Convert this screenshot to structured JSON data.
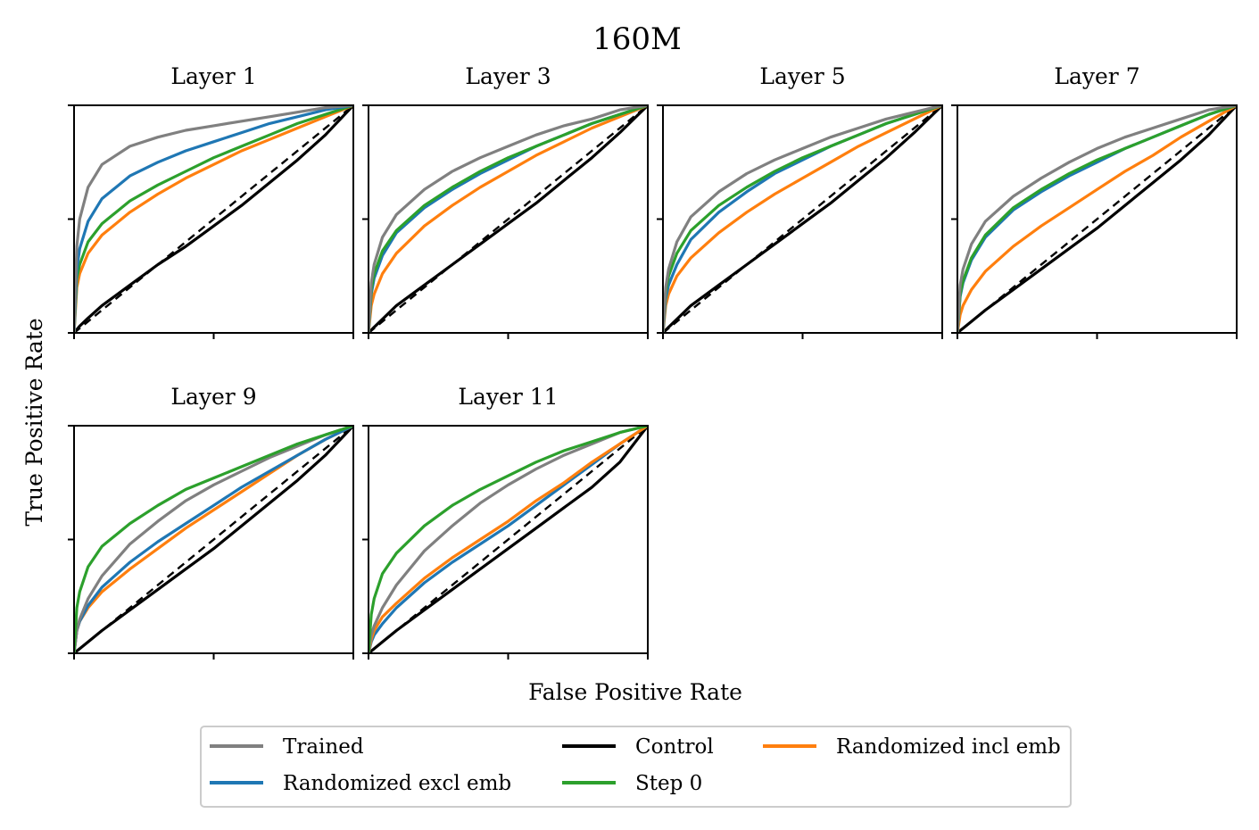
{
  "chart_data": {
    "type": "line",
    "title": "160M",
    "xlabel": "False Positive Rate",
    "ylabel": "True Positive Rate",
    "xlim": [
      0,
      1
    ],
    "ylim": [
      0,
      1
    ],
    "legend_position": "bottom-center",
    "reference_line": {
      "name": "chance",
      "x": [
        0,
        1
      ],
      "y": [
        0,
        1
      ],
      "style": "dashed",
      "color": "#000000"
    },
    "x": [
      0,
      0.01,
      0.02,
      0.05,
      0.1,
      0.2,
      0.3,
      0.4,
      0.5,
      0.6,
      0.7,
      0.8,
      0.9,
      1.0
    ],
    "legend": [
      {
        "name": "Trained",
        "color": "#808080"
      },
      {
        "name": "Randomized excl emb",
        "color": "#1f77b4"
      },
      {
        "name": "Control",
        "color": "#000000"
      },
      {
        "name": "Step 0",
        "color": "#2ca02c"
      },
      {
        "name": "Randomized incl emb",
        "color": "#ff7f0e"
      }
    ],
    "panels": [
      {
        "title": "Layer 1",
        "series": [
          {
            "name": "Control",
            "values": [
              0,
              0.015,
              0.03,
              0.065,
              0.12,
              0.21,
              0.3,
              0.38,
              0.47,
              0.56,
              0.66,
              0.76,
              0.87,
              1.0
            ]
          },
          {
            "name": "Randomized incl emb",
            "values": [
              0,
              0.2,
              0.26,
              0.35,
              0.43,
              0.53,
              0.61,
              0.68,
              0.74,
              0.8,
              0.85,
              0.9,
              0.95,
              1.0
            ]
          },
          {
            "name": "Step 0",
            "values": [
              0,
              0.24,
              0.3,
              0.4,
              0.48,
              0.58,
              0.65,
              0.71,
              0.77,
              0.82,
              0.87,
              0.92,
              0.96,
              1.0
            ]
          },
          {
            "name": "Randomized excl emb",
            "values": [
              0,
              0.28,
              0.37,
              0.49,
              0.59,
              0.69,
              0.75,
              0.8,
              0.84,
              0.88,
              0.92,
              0.95,
              0.98,
              1.0
            ]
          },
          {
            "name": "Trained",
            "values": [
              0,
              0.38,
              0.5,
              0.64,
              0.74,
              0.82,
              0.86,
              0.89,
              0.91,
              0.93,
              0.95,
              0.97,
              0.99,
              1.0
            ]
          }
        ]
      },
      {
        "title": "Layer 3",
        "series": [
          {
            "name": "Control",
            "values": [
              0,
              0.012,
              0.025,
              0.06,
              0.12,
              0.21,
              0.3,
              0.39,
              0.48,
              0.57,
              0.67,
              0.77,
              0.88,
              1.0
            ]
          },
          {
            "name": "Randomized incl emb",
            "values": [
              0,
              0.12,
              0.17,
              0.26,
              0.35,
              0.47,
              0.56,
              0.64,
              0.71,
              0.78,
              0.84,
              0.9,
              0.95,
              1.0
            ]
          },
          {
            "name": "Randomized excl emb",
            "values": [
              0,
              0.17,
              0.24,
              0.34,
              0.44,
              0.55,
              0.63,
              0.7,
              0.76,
              0.82,
              0.87,
              0.92,
              0.96,
              1.0
            ]
          },
          {
            "name": "Step 0",
            "values": [
              0,
              0.19,
              0.26,
              0.36,
              0.45,
              0.56,
              0.64,
              0.71,
              0.77,
              0.82,
              0.87,
              0.92,
              0.96,
              1.0
            ]
          },
          {
            "name": "Trained",
            "values": [
              0,
              0.22,
              0.3,
              0.42,
              0.52,
              0.63,
              0.71,
              0.77,
              0.82,
              0.87,
              0.91,
              0.94,
              0.98,
              1.0
            ]
          }
        ]
      },
      {
        "title": "Layer 5",
        "series": [
          {
            "name": "Control",
            "values": [
              0,
              0.012,
              0.025,
              0.06,
              0.12,
              0.21,
              0.3,
              0.39,
              0.48,
              0.57,
              0.67,
              0.77,
              0.88,
              1.0
            ]
          },
          {
            "name": "Randomized incl emb",
            "values": [
              0,
              0.12,
              0.17,
              0.25,
              0.33,
              0.44,
              0.53,
              0.61,
              0.68,
              0.75,
              0.82,
              0.88,
              0.94,
              1.0
            ]
          },
          {
            "name": "Randomized excl emb",
            "values": [
              0,
              0.15,
              0.21,
              0.3,
              0.41,
              0.53,
              0.62,
              0.7,
              0.76,
              0.82,
              0.87,
              0.92,
              0.96,
              1.0
            ]
          },
          {
            "name": "Step 0",
            "values": [
              0,
              0.18,
              0.25,
              0.35,
              0.45,
              0.56,
              0.64,
              0.71,
              0.77,
              0.82,
              0.87,
              0.92,
              0.96,
              1.0
            ]
          },
          {
            "name": "Trained",
            "values": [
              0,
              0.2,
              0.28,
              0.4,
              0.51,
              0.62,
              0.7,
              0.76,
              0.81,
              0.86,
              0.9,
              0.94,
              0.97,
              1.0
            ]
          }
        ]
      },
      {
        "title": "Layer 7",
        "series": [
          {
            "name": "Control",
            "values": [
              0,
              0.01,
              0.02,
              0.05,
              0.1,
              0.19,
              0.28,
              0.37,
              0.46,
              0.56,
              0.66,
              0.76,
              0.87,
              1.0
            ]
          },
          {
            "name": "Randomized incl emb",
            "values": [
              0,
              0.08,
              0.12,
              0.19,
              0.27,
              0.38,
              0.47,
              0.55,
              0.63,
              0.71,
              0.78,
              0.86,
              0.93,
              1.0
            ]
          },
          {
            "name": "Randomized excl emb",
            "values": [
              0,
              0.16,
              0.22,
              0.32,
              0.42,
              0.54,
              0.62,
              0.69,
              0.75,
              0.81,
              0.86,
              0.91,
              0.96,
              1.0
            ]
          },
          {
            "name": "Step 0",
            "values": [
              0,
              0.17,
              0.23,
              0.33,
              0.43,
              0.55,
              0.63,
              0.7,
              0.76,
              0.81,
              0.86,
              0.91,
              0.96,
              1.0
            ]
          },
          {
            "name": "Trained",
            "values": [
              0,
              0.21,
              0.28,
              0.39,
              0.49,
              0.6,
              0.68,
              0.75,
              0.81,
              0.86,
              0.9,
              0.94,
              0.98,
              1.0
            ]
          }
        ]
      },
      {
        "title": "Layer 9",
        "series": [
          {
            "name": "Control",
            "values": [
              0,
              0.01,
              0.02,
              0.05,
              0.1,
              0.19,
              0.28,
              0.37,
              0.46,
              0.56,
              0.66,
              0.76,
              0.87,
              1.0
            ]
          },
          {
            "name": "Randomized incl emb",
            "values": [
              0,
              0.1,
              0.14,
              0.2,
              0.27,
              0.37,
              0.46,
              0.55,
              0.63,
              0.71,
              0.79,
              0.87,
              0.94,
              1.0
            ]
          },
          {
            "name": "Randomized excl emb",
            "values": [
              0,
              0.1,
              0.14,
              0.21,
              0.29,
              0.4,
              0.49,
              0.57,
              0.65,
              0.73,
              0.8,
              0.87,
              0.94,
              1.0
            ]
          },
          {
            "name": "Trained",
            "values": [
              0,
              0.1,
              0.15,
              0.24,
              0.34,
              0.48,
              0.58,
              0.67,
              0.74,
              0.8,
              0.86,
              0.91,
              0.96,
              1.0
            ]
          },
          {
            "name": "Step 0",
            "values": [
              0,
              0.2,
              0.27,
              0.38,
              0.47,
              0.57,
              0.65,
              0.72,
              0.77,
              0.82,
              0.87,
              0.92,
              0.96,
              1.0
            ]
          }
        ]
      },
      {
        "title": "Layer 11",
        "series": [
          {
            "name": "Control",
            "values": [
              0,
              0.01,
              0.02,
              0.05,
              0.1,
              0.19,
              0.28,
              0.37,
              0.46,
              0.55,
              0.64,
              0.73,
              0.84,
              1.0
            ]
          },
          {
            "name": "Randomized excl emb",
            "values": [
              0,
              0.05,
              0.08,
              0.13,
              0.2,
              0.31,
              0.4,
              0.48,
              0.56,
              0.65,
              0.74,
              0.83,
              0.92,
              1.0
            ]
          },
          {
            "name": "Randomized incl emb",
            "values": [
              0,
              0.06,
              0.1,
              0.16,
              0.22,
              0.33,
              0.42,
              0.5,
              0.58,
              0.67,
              0.75,
              0.84,
              0.92,
              1.0
            ]
          },
          {
            "name": "Trained",
            "values": [
              0,
              0.08,
              0.12,
              0.2,
              0.3,
              0.45,
              0.56,
              0.66,
              0.74,
              0.81,
              0.87,
              0.92,
              0.97,
              1.0
            ]
          },
          {
            "name": "Step 0",
            "values": [
              0,
              0.17,
              0.24,
              0.35,
              0.44,
              0.56,
              0.65,
              0.72,
              0.78,
              0.84,
              0.89,
              0.93,
              0.97,
              1.0
            ]
          }
        ]
      }
    ]
  }
}
